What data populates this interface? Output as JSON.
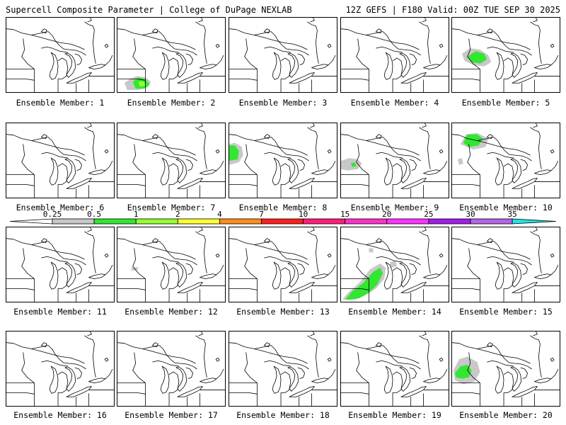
{
  "header": {
    "left": "Supercell Composite Parameter | College of DuPage NEXLAB",
    "right": "12Z GEFS | F180 Valid: 00Z TUE SEP 30 2025"
  },
  "legend": {
    "ticks": [
      "0.25",
      "0.5",
      "1",
      "2",
      "4",
      "7",
      "10",
      "15",
      "20",
      "25",
      "30",
      "35"
    ],
    "colors": [
      "#c8c8c8",
      "#32e632",
      "#96ff32",
      "#ffff32",
      "#ff8c1e",
      "#ff1e1e",
      "#ff1e78",
      "#ff32c8",
      "#ff32ff",
      "#a01ee6",
      "#b464e6",
      "#1ee6e6"
    ]
  },
  "panels": [
    {
      "label": "Ensemble Member: 1"
    },
    {
      "label": "Ensemble Member: 2"
    },
    {
      "label": "Ensemble Member: 3"
    },
    {
      "label": "Ensemble Member: 4"
    },
    {
      "label": "Ensemble Member: 5"
    },
    {
      "label": "Ensemble Member: 6"
    },
    {
      "label": "Ensemble Member: 7"
    },
    {
      "label": "Ensemble Member: 8"
    },
    {
      "label": "Ensemble Member: 9"
    },
    {
      "label": "Ensemble Member: 10"
    },
    {
      "label": "Ensemble Member: 11"
    },
    {
      "label": "Ensemble Member: 12"
    },
    {
      "label": "Ensemble Member: 13"
    },
    {
      "label": "Ensemble Member: 14"
    },
    {
      "label": "Ensemble Member: 15"
    },
    {
      "label": "Ensemble Member: 16"
    },
    {
      "label": "Ensemble Member: 17"
    },
    {
      "label": "Ensemble Member: 18"
    },
    {
      "label": "Ensemble Member: 19"
    },
    {
      "label": "Ensemble Member: 20"
    }
  ]
}
